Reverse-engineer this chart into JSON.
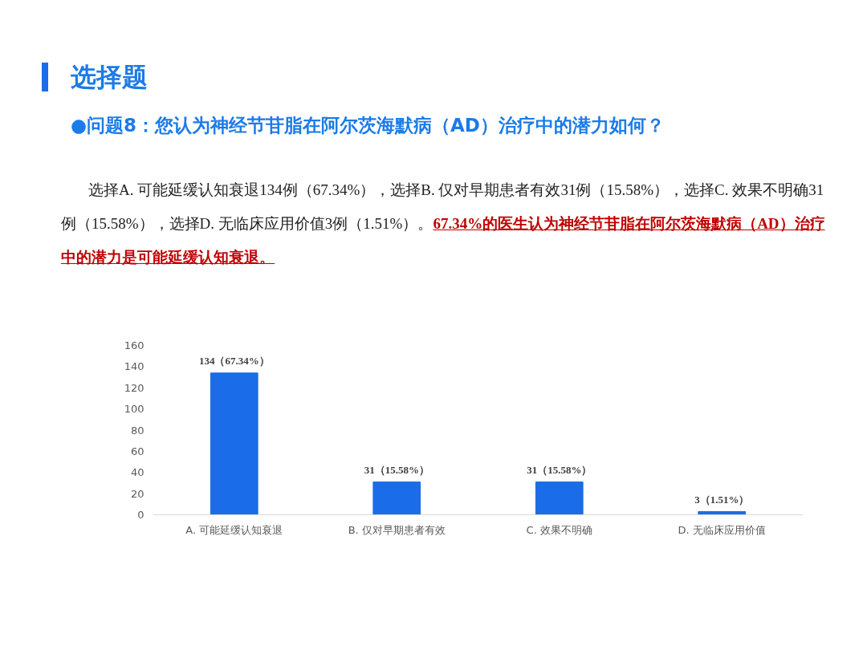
{
  "chart_data": {
    "type": "bar",
    "title": "选择题",
    "subtitle": "●问题8：您认为神经节苷脂在阿尔茨海默病（AD）治疗中的潜力如何？",
    "annotations": [
      "选择A. 可能延缓认知衰退134例（67.34%），选择B. 仅对早期患者有效31例（15.58%），选择C. 效果不明确31例（15.58%），选择D. 无临床应用价值3例（1.51%）。",
      "67.34%的医生认为神经节苷脂在阿尔茨海默病（AD）治疗中的潜力是可能延缓认知衰退。"
    ],
    "categories": [
      "A. 可能延缓认知衰退",
      "B. 仅对早期患者有效",
      "C. 效果不明确",
      "D. 无临床应用价值"
    ],
    "values": [
      134,
      31,
      31,
      3
    ],
    "value_labels": [
      "134（67.34%）",
      "31（15.58%）",
      "31（15.58%）",
      "3（1.51%）"
    ],
    "color": "#1b6ce8",
    "ylim": [
      0,
      160
    ],
    "yticks": [
      0,
      20,
      40,
      60,
      80,
      100,
      120,
      140,
      160
    ],
    "grid": false
  }
}
